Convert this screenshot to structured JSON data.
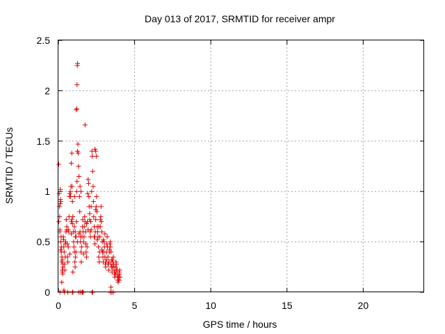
{
  "chart_data": {
    "type": "scatter",
    "title": "Day 013 of 2017, SRMTID for receiver ampr",
    "xlabel": "GPS time / hours",
    "ylabel": "SRMTID / TECUs",
    "xlim": [
      0,
      24
    ],
    "ylim": [
      0,
      2.5
    ],
    "xticks": [
      "0",
      "5",
      "10",
      "15",
      "20"
    ],
    "yticks": [
      "0",
      "0.5",
      "1",
      "1.5",
      "2",
      "2.5"
    ],
    "grid": true,
    "marker": "+",
    "color": "#dd0000",
    "series": [
      {
        "x": [
          0.02,
          0.05,
          0.08,
          0.1,
          0.12,
          0.15,
          0.18,
          0.2,
          0.22,
          0.25,
          0.28,
          0.3,
          0.03,
          0.06,
          0.09,
          0.13,
          0.16,
          0.19,
          0.23,
          0.26,
          0.29,
          0.32,
          0.35,
          0.38,
          0.4,
          0.42,
          0.45,
          0.48,
          0.5,
          0.52,
          0.55,
          0.58,
          0.6,
          0.62,
          0.65,
          0.68,
          0.7,
          0.72,
          0.75,
          0.78,
          0.8,
          0.82,
          0.85,
          0.88,
          0.9,
          0.92,
          0.95,
          0.98,
          1.0,
          1.02,
          1.05,
          1.08,
          1.1,
          1.12,
          1.15,
          1.18,
          1.2,
          1.22,
          1.25,
          1.28,
          1.3,
          1.32,
          1.35,
          1.38,
          1.4,
          1.42,
          1.45,
          1.48,
          1.5,
          1.52,
          1.55,
          1.58,
          1.6,
          1.62,
          1.65,
          1.68,
          1.7,
          1.72,
          1.75,
          1.78,
          1.8,
          1.82,
          1.85,
          1.88,
          1.9,
          1.92,
          1.95,
          1.98,
          2.0,
          2.02,
          2.05,
          2.08,
          2.1,
          2.12,
          2.15,
          2.18,
          2.2,
          2.22,
          2.25,
          2.28,
          2.3,
          2.32,
          2.35,
          2.38,
          2.4,
          2.42,
          2.45,
          2.48,
          2.5,
          2.52,
          2.55,
          2.58,
          2.6,
          2.62,
          2.65,
          2.68,
          2.7,
          2.72,
          2.75,
          2.78,
          2.8,
          2.82,
          2.85,
          2.88,
          2.9,
          2.92,
          2.95,
          2.98,
          3.0,
          3.02,
          3.05,
          3.08,
          3.1,
          3.12,
          3.15,
          3.18,
          3.2,
          3.22,
          3.25,
          3.28,
          3.3,
          3.32,
          3.35,
          3.38,
          3.4,
          3.42,
          3.45,
          3.48,
          3.5,
          3.52,
          3.55,
          3.58,
          3.6,
          3.62,
          3.65,
          3.68,
          3.7,
          3.72,
          3.75,
          3.78,
          3.8,
          3.82,
          3.85,
          3.88,
          3.9,
          3.92,
          3.95,
          3.98,
          4.0,
          4.02,
          4.05,
          0.22,
          0.36,
          0.62,
          0.95,
          1.15,
          1.18,
          1.2,
          1.22,
          1.24,
          1.26,
          1.55,
          1.6,
          1.75,
          2.4,
          2.45,
          2.5,
          1.05,
          1.1,
          1.12,
          0.85,
          0.88,
          0.92,
          1.42,
          1.48,
          3.45,
          3.6,
          0.1,
          0.4,
          0.92,
          0.95,
          1.35,
          1.45,
          1.55,
          1.62,
          2.2,
          2.25,
          3.4,
          3.5,
          0.15,
          0.35,
          0.55,
          0.75,
          1.35,
          1.85,
          2.05,
          2.35,
          2.65,
          2.95,
          3.25,
          3.55,
          3.85,
          0.45,
          0.85,
          1.25,
          1.65,
          2.15,
          2.55,
          2.85,
          3.15,
          3.45,
          3.75,
          3.95,
          0.12,
          0.25,
          0.65,
          1.05,
          1.45,
          1.95,
          2.45,
          2.75,
          3.05,
          3.35,
          3.65,
          3.98
        ],
        "y": [
          1.27,
          0.98,
          0.75,
          0.62,
          1.02,
          0.9,
          0.55,
          0.45,
          0.3,
          0.22,
          0.18,
          0.25,
          0.7,
          0.85,
          0.6,
          0.92,
          0.5,
          0.4,
          0.35,
          0.2,
          0.28,
          0.55,
          0.45,
          0.4,
          0.28,
          0.22,
          0.35,
          0.5,
          0.6,
          0.72,
          0.65,
          0.48,
          0.35,
          0.3,
          0.45,
          0.6,
          0.75,
          0.95,
          0.98,
          1.0,
          0.95,
          1.05,
          1.28,
          1.38,
          1.05,
          0.9,
          0.75,
          0.6,
          0.5,
          0.45,
          0.4,
          0.3,
          0.25,
          0.35,
          0.55,
          0.7,
          1.0,
          1.1,
          1.4,
          1.47,
          1.38,
          1.25,
          1.15,
          0.95,
          0.8,
          0.6,
          0.5,
          0.4,
          0.3,
          0.45,
          0.55,
          0.65,
          0.72,
          0.6,
          0.5,
          0.55,
          0.65,
          0.75,
          0.7,
          0.6,
          0.48,
          0.4,
          0.35,
          0.45,
          0.7,
          0.98,
          1.12,
          1.08,
          0.95,
          0.85,
          0.72,
          0.6,
          0.55,
          0.7,
          0.85,
          1.0,
          1.4,
          1.35,
          1.2,
          1.05,
          0.9,
          0.75,
          0.65,
          0.55,
          0.48,
          0.6,
          0.72,
          0.85,
          0.95,
          0.8,
          0.65,
          0.6,
          0.55,
          0.45,
          0.35,
          0.3,
          0.4,
          0.55,
          0.65,
          0.75,
          0.85,
          0.7,
          0.6,
          0.5,
          0.4,
          0.35,
          0.3,
          0.4,
          0.5,
          0.45,
          0.35,
          0.28,
          0.25,
          0.3,
          0.4,
          0.48,
          0.55,
          0.45,
          0.35,
          0.28,
          0.22,
          0.3,
          0.4,
          0.48,
          0.5,
          0.45,
          0.4,
          0.32,
          0.25,
          0.2,
          0.25,
          0.3,
          0.35,
          0.28,
          0.22,
          0.18,
          0.15,
          0.2,
          0.25,
          0.3,
          0.28,
          0.22,
          0.18,
          0.15,
          0.12,
          0.1,
          0.15,
          0.2,
          0.18,
          0.22,
          0.15,
          0.1,
          0.02,
          0.0,
          0.2,
          0.4,
          1.81,
          1.82,
          2.06,
          2.25,
          2.27,
          0.0,
          0.0,
          1.66,
          1.42,
          1.4,
          1.35,
          0.65,
          0.6,
          0.55,
          0.7,
          0.72,
          0.68,
          1.05,
          1.0,
          0.05,
          0.0,
          0.0,
          0.0,
          0.0,
          0.0,
          0.0,
          0.0,
          0.0,
          0.0,
          0.0,
          0.0,
          0.0,
          0.0,
          0.42,
          0.52,
          0.62,
          0.38,
          0.58,
          0.68,
          0.78,
          0.55,
          0.65,
          0.52,
          0.28,
          0.32,
          0.22,
          0.48,
          0.58,
          0.5,
          0.38,
          0.62,
          0.52,
          0.42,
          0.32,
          0.28,
          0.18,
          0.12,
          0.88,
          0.32,
          0.62,
          0.95,
          0.55,
          0.62,
          0.82,
          0.72,
          0.58,
          0.42,
          0.25,
          0.12
        ]
      }
    ]
  }
}
